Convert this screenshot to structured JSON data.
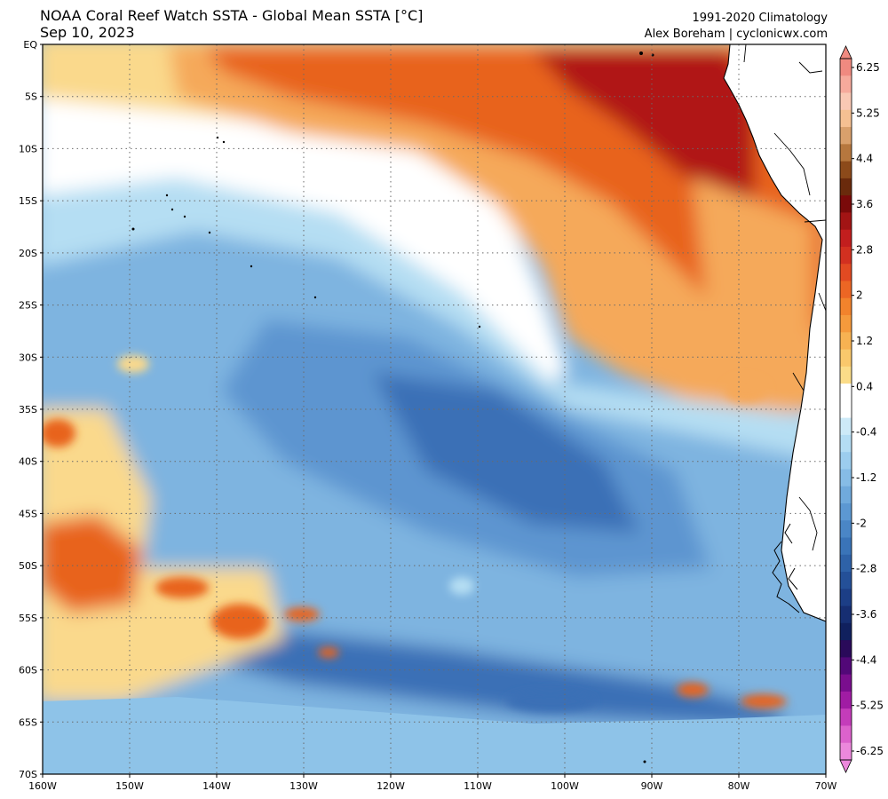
{
  "header": {
    "title": "NOAA Coral Reef Watch SSTA - Global Mean SSTA [°C]",
    "date": "Sep 10, 2023",
    "climatology": "1991-2020 Climatology",
    "credit": "Alex Boreham | cyclonicwx.com"
  },
  "map": {
    "lat_labels": [
      "EQ",
      "5S",
      "10S",
      "15S",
      "20S",
      "25S",
      "30S",
      "35S",
      "40S",
      "45S",
      "50S",
      "55S",
      "60S",
      "65S",
      "70S"
    ],
    "lon_labels": [
      "160W",
      "150W",
      "140W",
      "130W",
      "120W",
      "110W",
      "100W",
      "90W",
      "80W",
      "70W"
    ],
    "colors": {
      "deep_warm": "#b01818",
      "warm": "#e8641e",
      "mild_warm": "#f5a95a",
      "slight_warm": "#fad98c",
      "neutral": "#ffffff",
      "slight_cool": "#b5def3",
      "cool": "#7eb4e0",
      "mid_cool": "#5d95d0",
      "deep_cool": "#3b6fb6",
      "polar_band": "#8ec3e8",
      "land": "#ffffff"
    }
  },
  "colorbar": {
    "labels": [
      "6.25",
      "5.25",
      "4.4",
      "3.6",
      "2.8",
      "2",
      "1.2",
      "0.4",
      "-0.4",
      "-1.2",
      "-2",
      "-2.8",
      "-3.6",
      "-4.4",
      "-5.25",
      "-6.25"
    ],
    "colors": [
      "#f08a80",
      "#f6aa9c",
      "#f9c8b4",
      "#f5c092",
      "#d9a06c",
      "#b6773e",
      "#8c4a1a",
      "#6a2a0c",
      "#7a0a0a",
      "#a21414",
      "#c21e1e",
      "#d23020",
      "#e24a22",
      "#ec6624",
      "#f2832c",
      "#f59a3c",
      "#f7b252",
      "#f9c86c",
      "#fbdc88",
      "#ffffff",
      "#ffffff",
      "#cdeaf8",
      "#b4ddf4",
      "#9ccdee",
      "#86bce6",
      "#70aadc",
      "#5c98d2",
      "#4a86c6",
      "#3a74b8",
      "#2e62a8",
      "#245098",
      "#1c3e86",
      "#162e72",
      "#10205e",
      "#2a0a5a",
      "#520878",
      "#7a0e8e",
      "#a01ca4",
      "#c43cba",
      "#dc62cc",
      "#ec88dc"
    ]
  }
}
